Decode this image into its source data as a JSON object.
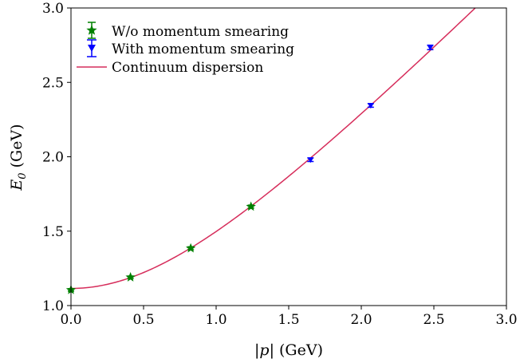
{
  "chart_data": {
    "type": "scatter",
    "xlabel_prefix": "|p|",
    "xlabel_suffix": " (GeV)",
    "ylabel_base": "E",
    "ylabel_sub": "0",
    "ylabel_suffix": " (GeV)",
    "xlim": [
      0.0,
      3.0
    ],
    "ylim": [
      1.0,
      3.0
    ],
    "xticks": [
      0.0,
      0.5,
      1.0,
      1.5,
      2.0,
      2.5,
      3.0
    ],
    "yticks": [
      1.0,
      1.5,
      2.0,
      2.5,
      3.0
    ],
    "xtick_labels": [
      "0.0",
      "0.5",
      "1.0",
      "1.5",
      "2.0",
      "2.5",
      "3.0"
    ],
    "ytick_labels": [
      "1.0",
      "1.5",
      "2.0",
      "2.5",
      "3.0"
    ],
    "grid": false,
    "legend_position": "top-left",
    "series": [
      {
        "name": "W/o momentum smearing",
        "marker": "star",
        "color": "#008000",
        "x": [
          0.0,
          0.41,
          0.825,
          1.24
        ],
        "y": [
          1.105,
          1.19,
          1.385,
          1.665
        ],
        "yerr": [
          0.008,
          0.008,
          0.01,
          0.01
        ]
      },
      {
        "name": "With momentum smearing",
        "marker": "triangle-down",
        "color": "#0000ff",
        "x": [
          1.65,
          2.065,
          2.475
        ],
        "y": [
          1.98,
          2.345,
          2.735
        ],
        "yerr": [
          0.012,
          0.012,
          0.015
        ]
      },
      {
        "name": "Continuum dispersion",
        "type": "line",
        "color": "#d62d5b",
        "function": "sqrt(m^2 + p^2)",
        "mass": 1.115
      }
    ]
  }
}
